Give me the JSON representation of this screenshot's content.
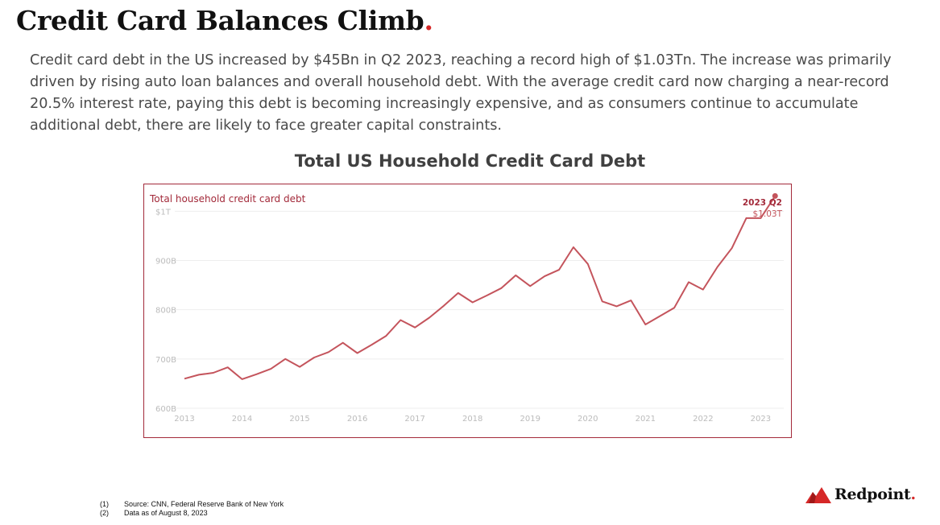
{
  "slide": {
    "title": "Credit Card Balances Climb",
    "title_dot": ".",
    "description": "Credit card debt in the US increased by $45Bn in Q2 2023, reaching a record high of $1.03Tn. The increase was primarily driven by rising auto loan balances and overall household debt. With the average credit card now charging a near-record 20.5% interest rate, paying this debt is becoming increasingly expensive, and as consumers continue to accumulate additional debt, there are likely to face greater capital constraints.",
    "chart_heading": "Total US Household Credit Card Debt"
  },
  "footnotes": [
    {
      "num": "(1)",
      "text": "Source: CNN, Federal Reserve Bank of New York"
    },
    {
      "num": "(2)",
      "text": "Data as of August 8, 2023"
    }
  ],
  "logo": {
    "text": "Redpoint",
    "dot": "."
  },
  "colors": {
    "accent": "#d62828",
    "line": "#c4545c",
    "border": "#a32a3a",
    "axis_text": "#bbbbbb",
    "grid": "#eeeeee"
  },
  "chart_data": {
    "type": "line",
    "title": "Total household credit card debt",
    "annotation": {
      "label": "2023 Q2",
      "value": "$1.03T"
    },
    "xlabel": "",
    "ylabel": "",
    "ylim": [
      600,
      1030
    ],
    "xlim": [
      2013,
      2023.4
    ],
    "grid": true,
    "y_ticks": [
      {
        "value": 600,
        "label": "600B"
      },
      {
        "value": 700,
        "label": "700B"
      },
      {
        "value": 800,
        "label": "800B"
      },
      {
        "value": 900,
        "label": "900B"
      },
      {
        "value": 1000,
        "label": "$1T"
      }
    ],
    "x_ticks": [
      {
        "value": 2013,
        "label": "2013"
      },
      {
        "value": 2014,
        "label": "2014"
      },
      {
        "value": 2015,
        "label": "2015"
      },
      {
        "value": 2016,
        "label": "2016"
      },
      {
        "value": 2017,
        "label": "2017"
      },
      {
        "value": 2018,
        "label": "2018"
      },
      {
        "value": 2019,
        "label": "2019"
      },
      {
        "value": 2020,
        "label": "2020"
      },
      {
        "value": 2021,
        "label": "2021"
      },
      {
        "value": 2022,
        "label": "2022"
      },
      {
        "value": 2023,
        "label": "2023"
      }
    ],
    "series": [
      {
        "name": "Total household credit card debt",
        "x": [
          2013.0,
          2013.25,
          2013.5,
          2013.75,
          2014.0,
          2014.25,
          2014.5,
          2014.75,
          2015.0,
          2015.25,
          2015.5,
          2015.75,
          2016.0,
          2016.25,
          2016.5,
          2016.75,
          2017.0,
          2017.25,
          2017.5,
          2017.75,
          2018.0,
          2018.25,
          2018.5,
          2018.75,
          2019.0,
          2019.25,
          2019.5,
          2019.75,
          2020.0,
          2020.25,
          2020.5,
          2020.75,
          2021.0,
          2021.25,
          2021.5,
          2021.75,
          2022.0,
          2022.25,
          2022.5,
          2022.75,
          2023.0,
          2023.25
        ],
        "values": [
          660,
          668,
          672,
          683,
          659,
          669,
          680,
          700,
          684,
          703,
          714,
          733,
          712,
          729,
          747,
          779,
          764,
          784,
          808,
          834,
          815,
          829,
          844,
          870,
          848,
          868,
          881,
          927,
          893,
          817,
          807,
          819,
          770,
          787,
          804,
          856,
          841,
          887,
          925,
          986,
          986,
          1031
        ]
      }
    ]
  }
}
